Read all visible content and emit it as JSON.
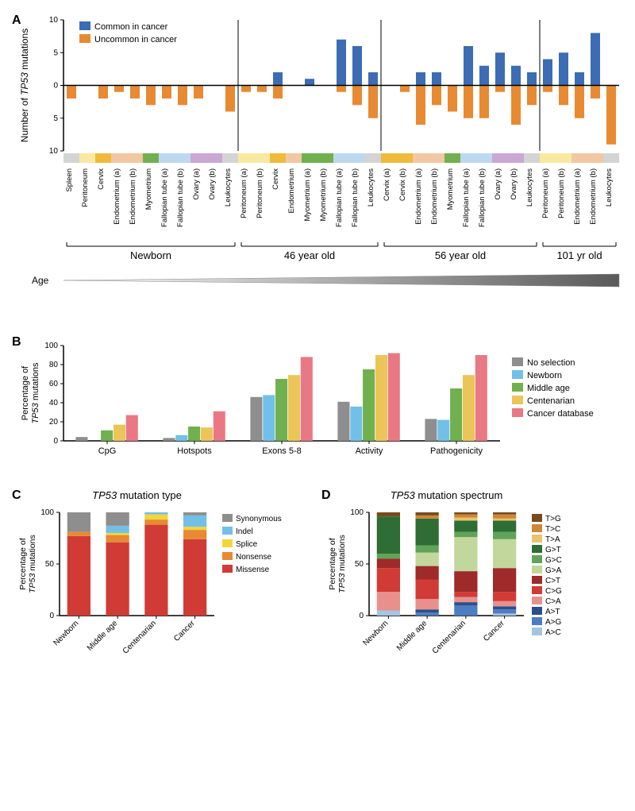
{
  "panelA": {
    "label": "A",
    "y_axis_label": "Number of <tspan font-style='italic'>TP53</tspan> mutations",
    "y_ticks_up": [
      0,
      5,
      10
    ],
    "y_ticks_down": [
      5,
      10
    ],
    "y_min": -10,
    "y_max": 10,
    "legend": [
      {
        "label": "Common in cancer",
        "color": "#3c6cb4"
      },
      {
        "label": "Uncommon in cancer",
        "color": "#e78a31"
      }
    ],
    "groups": [
      {
        "name": "Newborn",
        "items": [
          {
            "label": "Spleen",
            "common": 0,
            "uncommon": 2,
            "bg": "#d4d4d4"
          },
          {
            "label": "Peritoneum",
            "common": 0,
            "uncommon": 0,
            "bg": "#f9e9a0"
          },
          {
            "label": "Cervix",
            "common": 0,
            "uncommon": 2,
            "bg": "#eebb3a"
          },
          {
            "label": "Endometrium (a)",
            "common": 0,
            "uncommon": 1,
            "bg": "#f2c7a3"
          },
          {
            "label": "Endometrium (b)",
            "common": 0,
            "uncommon": 2,
            "bg": "#f2c7a3"
          },
          {
            "label": "Myometrium",
            "common": 0,
            "uncommon": 3,
            "bg": "#70b04f"
          },
          {
            "label": "Fallopian tube (a)",
            "common": 0,
            "uncommon": 2,
            "bg": "#bdd9ef"
          },
          {
            "label": "Fallopian tube (b)",
            "common": 0,
            "uncommon": 3,
            "bg": "#bdd9ef"
          },
          {
            "label": "Ovary (a)",
            "common": 0,
            "uncommon": 2,
            "bg": "#c9a8d4"
          },
          {
            "label": "Ovary (b)",
            "common": 0,
            "uncommon": 0,
            "bg": "#c9a8d4"
          },
          {
            "label": "Leukocytes",
            "common": 0,
            "uncommon": 4,
            "bg": "#d4d4d4"
          }
        ]
      },
      {
        "name": "46 year old",
        "items": [
          {
            "label": "Peritoneum (a)",
            "common": 0,
            "uncommon": 1,
            "bg": "#f9e9a0"
          },
          {
            "label": "Peritoneum (b)",
            "common": 0,
            "uncommon": 1,
            "bg": "#f9e9a0"
          },
          {
            "label": "Cervix",
            "common": 2,
            "uncommon": 2,
            "bg": "#eebb3a"
          },
          {
            "label": "Endometrium",
            "common": 0,
            "uncommon": 0,
            "bg": "#f2c7a3"
          },
          {
            "label": "Myometrium (a)",
            "common": 1,
            "uncommon": 0,
            "bg": "#70b04f"
          },
          {
            "label": "Myometrium (b)",
            "common": 0,
            "uncommon": 0,
            "bg": "#70b04f"
          },
          {
            "label": "Fallopian tube (a)",
            "common": 7,
            "uncommon": 1,
            "bg": "#bdd9ef"
          },
          {
            "label": "Fallopian tube (b)",
            "common": 6,
            "uncommon": 3,
            "bg": "#bdd9ef"
          },
          {
            "label": "Leukocytes",
            "common": 2,
            "uncommon": 5,
            "bg": "#d4d4d4"
          }
        ]
      },
      {
        "name": "56 year old",
        "items": [
          {
            "label": "Cervix (a)",
            "common": 0,
            "uncommon": 0,
            "bg": "#eebb3a"
          },
          {
            "label": "Cervix (b)",
            "common": 0,
            "uncommon": 1,
            "bg": "#eebb3a"
          },
          {
            "label": "Endometrium (a)",
            "common": 2,
            "uncommon": 6,
            "bg": "#f2c7a3"
          },
          {
            "label": "Endometrium (b)",
            "common": 2,
            "uncommon": 3,
            "bg": "#f2c7a3"
          },
          {
            "label": "Myometrium",
            "common": 0,
            "uncommon": 4,
            "bg": "#70b04f"
          },
          {
            "label": "Fallopian tube (a)",
            "common": 6,
            "uncommon": 5,
            "bg": "#bdd9ef"
          },
          {
            "label": "Fallopian tube (b)",
            "common": 3,
            "uncommon": 5,
            "bg": "#bdd9ef"
          },
          {
            "label": "Ovary (a)",
            "common": 5,
            "uncommon": 1,
            "bg": "#c9a8d4"
          },
          {
            "label": "Ovary (b)",
            "common": 3,
            "uncommon": 6,
            "bg": "#c9a8d4"
          },
          {
            "label": "Leukocytes",
            "common": 2,
            "uncommon": 3,
            "bg": "#d4d4d4"
          }
        ]
      },
      {
        "name": "101 yr old",
        "items": [
          {
            "label": "Peritoneum (a)",
            "common": 4,
            "uncommon": 1,
            "bg": "#f9e9a0"
          },
          {
            "label": "Peritoneum (b)",
            "common": 5,
            "uncommon": 3,
            "bg": "#f9e9a0"
          },
          {
            "label": "Endometrium (a)",
            "common": 2,
            "uncommon": 5,
            "bg": "#f2c7a3"
          },
          {
            "label": "Endometrium (b)",
            "common": 8,
            "uncommon": 2,
            "bg": "#f2c7a3"
          },
          {
            "label": "Leukocytes",
            "common": 0,
            "uncommon": 9,
            "bg": "#d4d4d4"
          }
        ]
      }
    ],
    "age_label": "Age"
  },
  "panelB": {
    "label": "B",
    "y_axis_label": "Percentage of\n<tspan font-style='italic'>TP53</tspan> mutations",
    "y_min": 0,
    "y_max": 100,
    "y_ticks": [
      0,
      20,
      40,
      60,
      80,
      100
    ],
    "categories": [
      "CpG",
      "Hotspots",
      "Exons 5-8",
      "Activity",
      "Pathogenicity"
    ],
    "series": [
      {
        "name": "No selection",
        "color": "#8e8e8e"
      },
      {
        "name": "Newborn",
        "color": "#72c0e7"
      },
      {
        "name": "Middle age",
        "color": "#70b04f"
      },
      {
        "name": "Centenarian",
        "color": "#ecc558"
      },
      {
        "name": "Cancer database",
        "color": "#e97884"
      }
    ],
    "data": {
      "CpG": [
        4,
        0,
        11,
        17,
        27
      ],
      "Hotspots": [
        3,
        6,
        15,
        14,
        31
      ],
      "Exons 5-8": [
        46,
        48,
        65,
        69,
        88
      ],
      "Activity": [
        41,
        36,
        75,
        90,
        92
      ],
      "Pathogenicity": [
        23,
        22,
        55,
        69,
        90
      ]
    }
  },
  "panelC": {
    "label": "C",
    "title": "TP53 mutation type",
    "y_axis_label": "Percentage of\n<tspan font-style='italic'>TP53</tspan> mutations",
    "y_ticks": [
      0,
      50,
      100
    ],
    "categories": [
      "Newborn",
      "Middle age",
      "Centenarian",
      "Cancer"
    ],
    "legend": [
      {
        "name": "Synonymous",
        "color": "#8e8e8e"
      },
      {
        "name": "Indel",
        "color": "#72c0e7"
      },
      {
        "name": "Splice",
        "color": "#f3d63c"
      },
      {
        "name": "Nonsense",
        "color": "#e78a31"
      },
      {
        "name": "Missense",
        "color": "#d13b36"
      }
    ],
    "stacks": {
      "Newborn": {
        "Missense": 77,
        "Nonsense": 4,
        "Splice": 0,
        "Indel": 0,
        "Synonymous": 19
      },
      "Middle age": {
        "Missense": 71,
        "Nonsense": 7,
        "Splice": 2,
        "Indel": 7,
        "Synonymous": 13
      },
      "Centenarian": {
        "Missense": 88,
        "Nonsense": 5,
        "Splice": 5,
        "Indel": 2,
        "Synonymous": 0
      },
      "Cancer": {
        "Missense": 74,
        "Nonsense": 9,
        "Splice": 3,
        "Indel": 11,
        "Synonymous": 3
      }
    },
    "order": [
      "Missense",
      "Nonsense",
      "Splice",
      "Indel",
      "Synonymous"
    ]
  },
  "panelD": {
    "label": "D",
    "title": "TP53 mutation spectrum",
    "y_axis_label": "Percentage of\n<tspan font-style='italic'>TP53</tspan> mutations",
    "y_ticks": [
      0,
      50,
      100
    ],
    "categories": [
      "Newborn",
      "Middle age",
      "Centenarian",
      "Cancer"
    ],
    "legend": [
      {
        "name": "T>G",
        "color": "#7a4a1f"
      },
      {
        "name": "T>C",
        "color": "#cd8737"
      },
      {
        "name": "T>A",
        "color": "#e9c36f"
      },
      {
        "name": "G>T",
        "color": "#2e6d33"
      },
      {
        "name": "G>C",
        "color": "#61a358"
      },
      {
        "name": "G>A",
        "color": "#c2d79b"
      },
      {
        "name": "C>T",
        "color": "#9e2a2a"
      },
      {
        "name": "C>G",
        "color": "#d13b36"
      },
      {
        "name": "C>A",
        "color": "#e9908c"
      },
      {
        "name": "A>T",
        "color": "#2c4f8b"
      },
      {
        "name": "A>G",
        "color": "#4d7dc1"
      },
      {
        "name": "A>C",
        "color": "#a5c5e1"
      }
    ],
    "order": [
      "A>C",
      "A>G",
      "A>T",
      "C>A",
      "C>G",
      "C>T",
      "G>A",
      "G>C",
      "G>T",
      "T>A",
      "T>C",
      "T>G"
    ],
    "stacks": {
      "Newborn": {
        "A>C": 5,
        "A>G": 0,
        "A>T": 0,
        "C>A": 18,
        "C>G": 23,
        "C>T": 9,
        "G>A": 0,
        "G>C": 5,
        "G>T": 36,
        "T>A": 0,
        "T>C": 0,
        "T>G": 4
      },
      "Middle age": {
        "A>C": 0,
        "A>G": 3,
        "A>T": 3,
        "C>A": 10,
        "C>G": 19,
        "C>T": 13,
        "G>A": 13,
        "G>C": 7,
        "G>T": 26,
        "T>A": 0,
        "T>C": 3,
        "T>G": 3
      },
      "Centenarian": {
        "A>C": 0,
        "A>G": 10,
        "A>T": 3,
        "C>A": 5,
        "C>G": 5,
        "C>T": 20,
        "G>A": 33,
        "G>C": 5,
        "G>T": 11,
        "T>A": 3,
        "T>C": 3,
        "T>G": 2
      },
      "Cancer": {
        "A>C": 2,
        "A>G": 4,
        "A>T": 3,
        "C>A": 5,
        "C>G": 9,
        "C>T": 23,
        "G>A": 28,
        "G>C": 7,
        "G>T": 11,
        "T>A": 2,
        "T>C": 4,
        "T>G": 2
      }
    }
  }
}
